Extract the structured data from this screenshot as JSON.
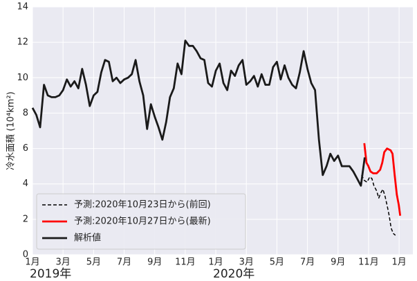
{
  "chart_data": {
    "type": "line",
    "ylabel": "冷水面積 (10⁴km²)",
    "xlim": [
      0,
      24.9
    ],
    "ylim": [
      0,
      14
    ],
    "yticks": [
      0,
      2,
      4,
      6,
      8,
      10,
      12,
      14
    ],
    "xticks": [
      {
        "value": 0,
        "label": "1月"
      },
      {
        "value": 2,
        "label": "3月"
      },
      {
        "value": 4,
        "label": "5月"
      },
      {
        "value": 6,
        "label": "7月"
      },
      {
        "value": 8,
        "label": "9月"
      },
      {
        "value": 10,
        "label": "11月"
      },
      {
        "value": 12,
        "label": "1月"
      },
      {
        "value": 14,
        "label": "3月"
      },
      {
        "value": 16,
        "label": "5月"
      },
      {
        "value": 18,
        "label": "7月"
      },
      {
        "value": 20,
        "label": "9月"
      },
      {
        "value": 22,
        "label": "11月"
      },
      {
        "value": 24,
        "label": "1月"
      }
    ],
    "x_year_labels": [
      {
        "value": 0,
        "label": "2019年"
      },
      {
        "value": 12,
        "label": "2020年"
      }
    ],
    "grid": true,
    "legend": "lower left",
    "series": [
      {
        "name": "予測:2020年10月23日から(前回)",
        "color": "#000000",
        "style": "dashed",
        "x": [
          21.54,
          21.72,
          21.9,
          22.08,
          22.22,
          22.35,
          22.53,
          22.67,
          22.81,
          22.94,
          23.08,
          23.21,
          23.35,
          23.48,
          23.62,
          23.76
        ],
        "values": [
          4.5,
          4.2,
          4.1,
          4.4,
          4.3,
          3.9,
          3.6,
          3.2,
          3.5,
          3.7,
          3.3,
          2.8,
          2.2,
          1.5,
          1.2,
          1.1
        ]
      },
      {
        "name": "予測:2020年10月27日から(最新)",
        "color": "#ff0000",
        "style": "solid",
        "x": [
          21.72,
          21.86,
          21.99,
          22.13,
          22.31,
          22.53,
          22.76,
          22.9,
          23.03,
          23.21,
          23.44,
          23.57,
          23.71,
          23.85,
          23.98,
          24.07
        ],
        "values": [
          6.3,
          5.2,
          5.0,
          4.7,
          4.6,
          4.6,
          4.8,
          5.2,
          5.8,
          6.0,
          5.9,
          5.7,
          4.5,
          3.4,
          2.8,
          2.2
        ]
      },
      {
        "name": "解析値",
        "color": "#1a1a1a",
        "style": "solid",
        "x": [
          0,
          0.25,
          0.5,
          0.75,
          1,
          1.25,
          1.5,
          1.75,
          2,
          2.25,
          2.5,
          2.75,
          3,
          3.25,
          3.5,
          3.75,
          4,
          4.25,
          4.5,
          4.75,
          5,
          5.25,
          5.5,
          5.75,
          6,
          6.25,
          6.5,
          6.75,
          7,
          7.25,
          7.5,
          7.75,
          8,
          8.25,
          8.5,
          8.75,
          9,
          9.25,
          9.5,
          9.75,
          10,
          10.25,
          10.5,
          10.75,
          11,
          11.25,
          11.5,
          11.75,
          12,
          12.25,
          12.5,
          12.75,
          13,
          13.25,
          13.5,
          13.75,
          14,
          14.25,
          14.5,
          14.75,
          15,
          15.25,
          15.5,
          15.75,
          16,
          16.25,
          16.5,
          16.75,
          17,
          17.25,
          17.5,
          17.75,
          18,
          18.25,
          18.5,
          18.75,
          19,
          19.25,
          19.5,
          19.75,
          20,
          20.25,
          20.5,
          20.75,
          21,
          21.25,
          21.5,
          21.75
        ],
        "values": [
          8.3,
          7.9,
          7.2,
          9.6,
          9.0,
          8.9,
          8.9,
          9.0,
          9.3,
          9.9,
          9.5,
          9.8,
          9.4,
          10.5,
          9.6,
          8.4,
          9.0,
          9.2,
          10.3,
          11.0,
          10.9,
          9.8,
          10.0,
          9.7,
          9.9,
          10.0,
          10.2,
          11.0,
          9.8,
          9.0,
          7.1,
          8.5,
          7.8,
          7.2,
          6.5,
          7.5,
          8.9,
          9.4,
          10.8,
          10.2,
          12.1,
          11.8,
          11.8,
          11.5,
          11.1,
          11.0,
          9.7,
          9.5,
          10.4,
          10.8,
          9.7,
          9.3,
          10.4,
          10.1,
          10.7,
          11.0,
          9.6,
          9.8,
          10.1,
          9.5,
          10.2,
          9.6,
          9.6,
          10.6,
          10.9,
          9.9,
          10.7,
          10.0,
          9.6,
          9.4,
          10.3,
          11.5,
          10.5,
          9.7,
          9.3,
          6.5,
          4.5,
          5.0,
          5.7,
          5.3,
          5.6,
          5.0,
          5.0,
          5.0,
          4.7,
          4.3,
          3.9,
          5.5
        ]
      }
    ]
  }
}
